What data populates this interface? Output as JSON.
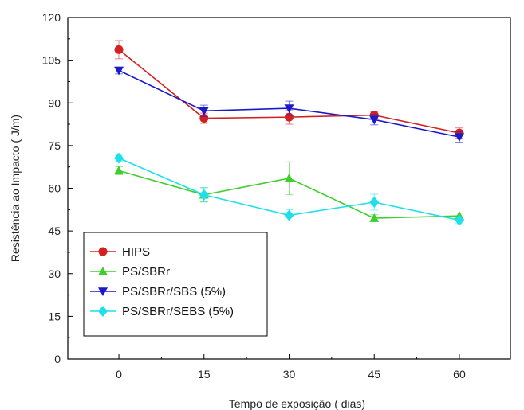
{
  "chart_data": {
    "type": "line",
    "xlabel": "Tempo de exposição  ( dias)",
    "ylabel": "Resistência ao Impacto  ( J/m)",
    "x": [
      0,
      15,
      30,
      45,
      60
    ],
    "xticks": [
      0,
      15,
      30,
      45,
      60
    ],
    "xlim": [
      -9,
      69
    ],
    "yticks": [
      0,
      15,
      30,
      45,
      60,
      75,
      90,
      105,
      120
    ],
    "ylim": [
      0,
      120
    ],
    "grid": false,
    "legend_position": "bottom-left",
    "series": [
      {
        "name": "HIPS",
        "color": "#d42020",
        "marker": "circle",
        "values": [
          108.7,
          84.6,
          85.0,
          85.7,
          79.4
        ],
        "errors": [
          3.2,
          1.8,
          2.5,
          1.2,
          1.8
        ]
      },
      {
        "name": "PS/SBRr",
        "color": "#3ecf2c",
        "marker": "triangle-up",
        "values": [
          66.2,
          57.7,
          63.5,
          49.5,
          50.3
        ],
        "errors": [
          1.4,
          2.5,
          5.8,
          1.2,
          1.0
        ]
      },
      {
        "name": "PS/SBRr/SBS (5%)",
        "color": "#1a1acc",
        "marker": "triangle-down",
        "values": [
          101.4,
          87.2,
          88.1,
          84.1,
          78.0
        ],
        "errors": [
          1.2,
          2.0,
          2.5,
          1.8,
          1.8
        ]
      },
      {
        "name": "PS/SBRr/SEBS (5%)",
        "color": "#1ee0ea",
        "marker": "diamond",
        "values": [
          70.6,
          57.7,
          50.5,
          55.1,
          48.8
        ],
        "errors": [
          1.0,
          2.5,
          2.0,
          2.8,
          1.2
        ]
      }
    ]
  }
}
